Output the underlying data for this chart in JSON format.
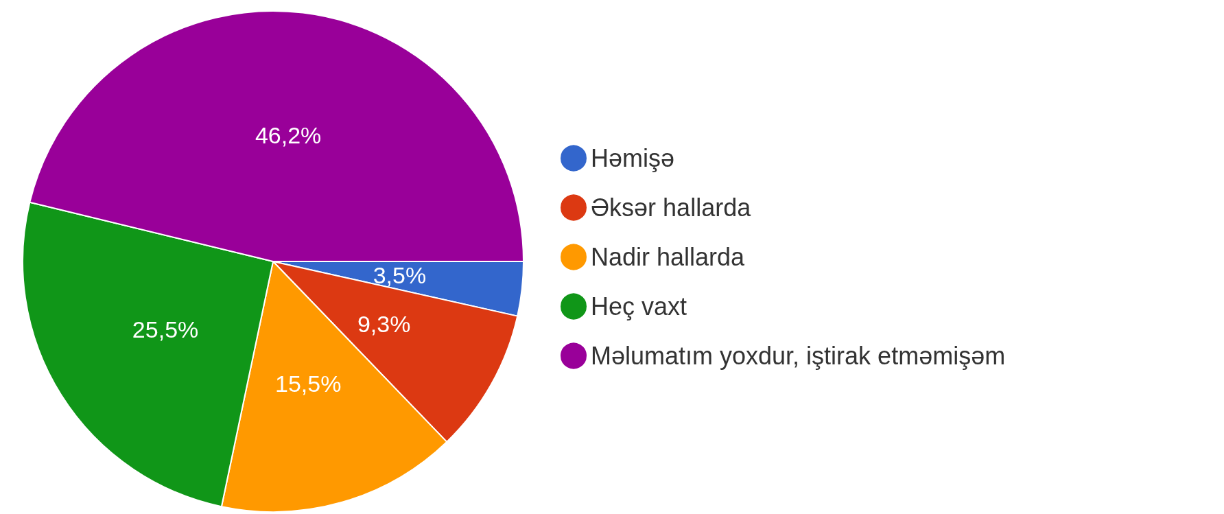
{
  "chart_data": {
    "type": "pie",
    "categories": [
      "Həmişə",
      "Əksər hallarda",
      "Nadir hallarda",
      "Heç vaxt",
      "Məlumatım yoxdur, iştirak etməmişəm"
    ],
    "values": [
      3.5,
      9.3,
      15.5,
      25.5,
      46.2
    ],
    "colors": [
      "#3366cc",
      "#dc3912",
      "#ff9900",
      "#109618",
      "#990099"
    ],
    "value_labels": [
      "3,5%",
      "9,3%",
      "15,5%",
      "25,5%",
      "46,2%"
    ],
    "legend": "right"
  }
}
